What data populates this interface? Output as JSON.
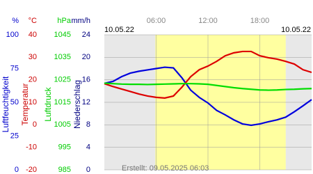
{
  "chart_data": {
    "type": "line",
    "date_start": "10.05.22",
    "date_end": "10.05.22",
    "footer": "Erstellt: 09.05.2025 06:03",
    "x": [
      0,
      1,
      2,
      3,
      4,
      5,
      6,
      7,
      8,
      9,
      10,
      11,
      12,
      13,
      14,
      15,
      16,
      17,
      18,
      19,
      20,
      21,
      22,
      23,
      24
    ],
    "xlim": [
      0,
      24
    ],
    "xticks": [
      {
        "value": 6,
        "label": "06:00"
      },
      {
        "value": 12,
        "label": "12:00"
      },
      {
        "value": 18,
        "label": "18:00"
      }
    ],
    "daylight": [
      5.9,
      21
    ],
    "grid": true,
    "axes": [
      {
        "unit": "%",
        "label": "Luftfeuchtigkeit",
        "color": "#0000cc",
        "ylim": [
          0,
          100
        ],
        "yticks": [
          0,
          25,
          50,
          75,
          100
        ]
      },
      {
        "unit": "°C",
        "label": "Temperatur",
        "color": "#cc0000",
        "ylim": [
          -20,
          40
        ],
        "yticks": [
          -20,
          -10,
          0,
          10,
          20,
          30,
          40
        ]
      },
      {
        "unit": "hPa",
        "label": "Luftdruck",
        "color": "#00cc00",
        "ylim": [
          985,
          1045
        ],
        "yticks": [
          985,
          995,
          1005,
          1015,
          1025,
          1035,
          1045
        ]
      },
      {
        "unit": "mm/h",
        "label": "Niederschlag",
        "color": "#000080",
        "ylim": [
          0,
          24
        ],
        "yticks": [
          0,
          4,
          8,
          12,
          16,
          20,
          24
        ]
      }
    ],
    "series": [
      {
        "name": "Luftfeuchtigkeit",
        "axis": 0,
        "color": "#0000dd",
        "values": [
          64,
          65.5,
          69,
          71.6,
          73,
          74,
          75,
          76,
          75.5,
          68,
          59,
          53.6,
          49.5,
          44,
          40.7,
          37,
          34,
          33,
          34,
          35.6,
          37,
          39,
          43,
          47.4,
          52
        ]
      },
      {
        "name": "Temperatur",
        "axis": 1,
        "color": "#dd0000",
        "values": [
          18.3,
          17,
          15.9,
          14.8,
          13.7,
          12.8,
          12.2,
          11.9,
          12.8,
          16.8,
          21.4,
          24.5,
          26.1,
          28.2,
          30.7,
          32,
          32.6,
          32.6,
          30.7,
          29.8,
          29.2,
          28.2,
          27,
          24.5,
          23.3
        ]
      },
      {
        "name": "Luftdruck",
        "axis": 2,
        "color": "#00dd00",
        "values": [
          1023.5,
          1023.3,
          1023.1,
          1023,
          1023,
          1022.9,
          1023,
          1023.1,
          1023.2,
          1023.3,
          1023.3,
          1023.2,
          1023,
          1022.5,
          1022,
          1021.5,
          1021.1,
          1020.8,
          1020.5,
          1020.4,
          1020.5,
          1020.7,
          1020.8,
          1021,
          1021.1
        ]
      }
    ]
  }
}
